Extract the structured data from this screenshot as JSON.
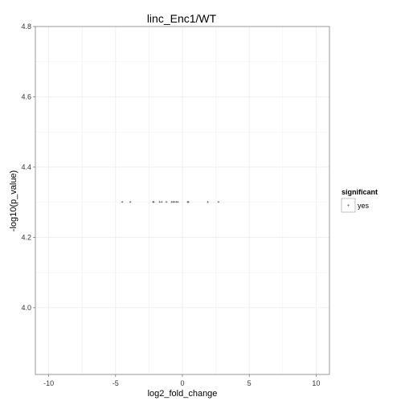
{
  "chart_data": {
    "type": "scatter",
    "title": "linc_Enc1/WT",
    "xlabel": "log2_fold_change",
    "ylabel": "-log10(p_value)",
    "xlim": [
      -11,
      11
    ],
    "ylim": [
      3.81,
      4.8
    ],
    "x_ticks": [
      -10,
      -5,
      0,
      5,
      10
    ],
    "y_ticks": [
      4.0,
      4.2,
      4.4,
      4.6,
      4.8
    ],
    "x_tick_labels": [
      "-10",
      "-5",
      "0",
      "5",
      "10"
    ],
    "y_tick_labels": [
      "4.0",
      "4.2",
      "4.4",
      "4.6",
      "4.8"
    ],
    "grid": true,
    "legend": {
      "title": "significant",
      "position": "right",
      "entries": [
        {
          "label": "yes",
          "symbol": "plus"
        }
      ]
    },
    "colors": {
      "panel_border": "#999999",
      "grid": "#ebebeb",
      "point": "#555555"
    },
    "series": [
      {
        "name": "yes",
        "points": [
          {
            "x": -4.5,
            "y": 4.301
          },
          {
            "x": -3.9,
            "y": 4.301
          },
          {
            "x": -2.2,
            "y": 4.301
          },
          {
            "x": -2.15,
            "y": 4.301
          },
          {
            "x": -1.7,
            "y": 4.301
          },
          {
            "x": -1.55,
            "y": 4.301
          },
          {
            "x": -1.2,
            "y": 4.301
          },
          {
            "x": -0.8,
            "y": 4.301
          },
          {
            "x": -0.7,
            "y": 4.301
          },
          {
            "x": -0.6,
            "y": 4.301
          },
          {
            "x": -0.45,
            "y": 4.301
          },
          {
            "x": -0.35,
            "y": 4.301
          },
          {
            "x": 0.4,
            "y": 4.301
          },
          {
            "x": 0.45,
            "y": 4.301
          },
          {
            "x": 1.9,
            "y": 4.301
          },
          {
            "x": 2.7,
            "y": 4.301
          }
        ]
      }
    ]
  }
}
